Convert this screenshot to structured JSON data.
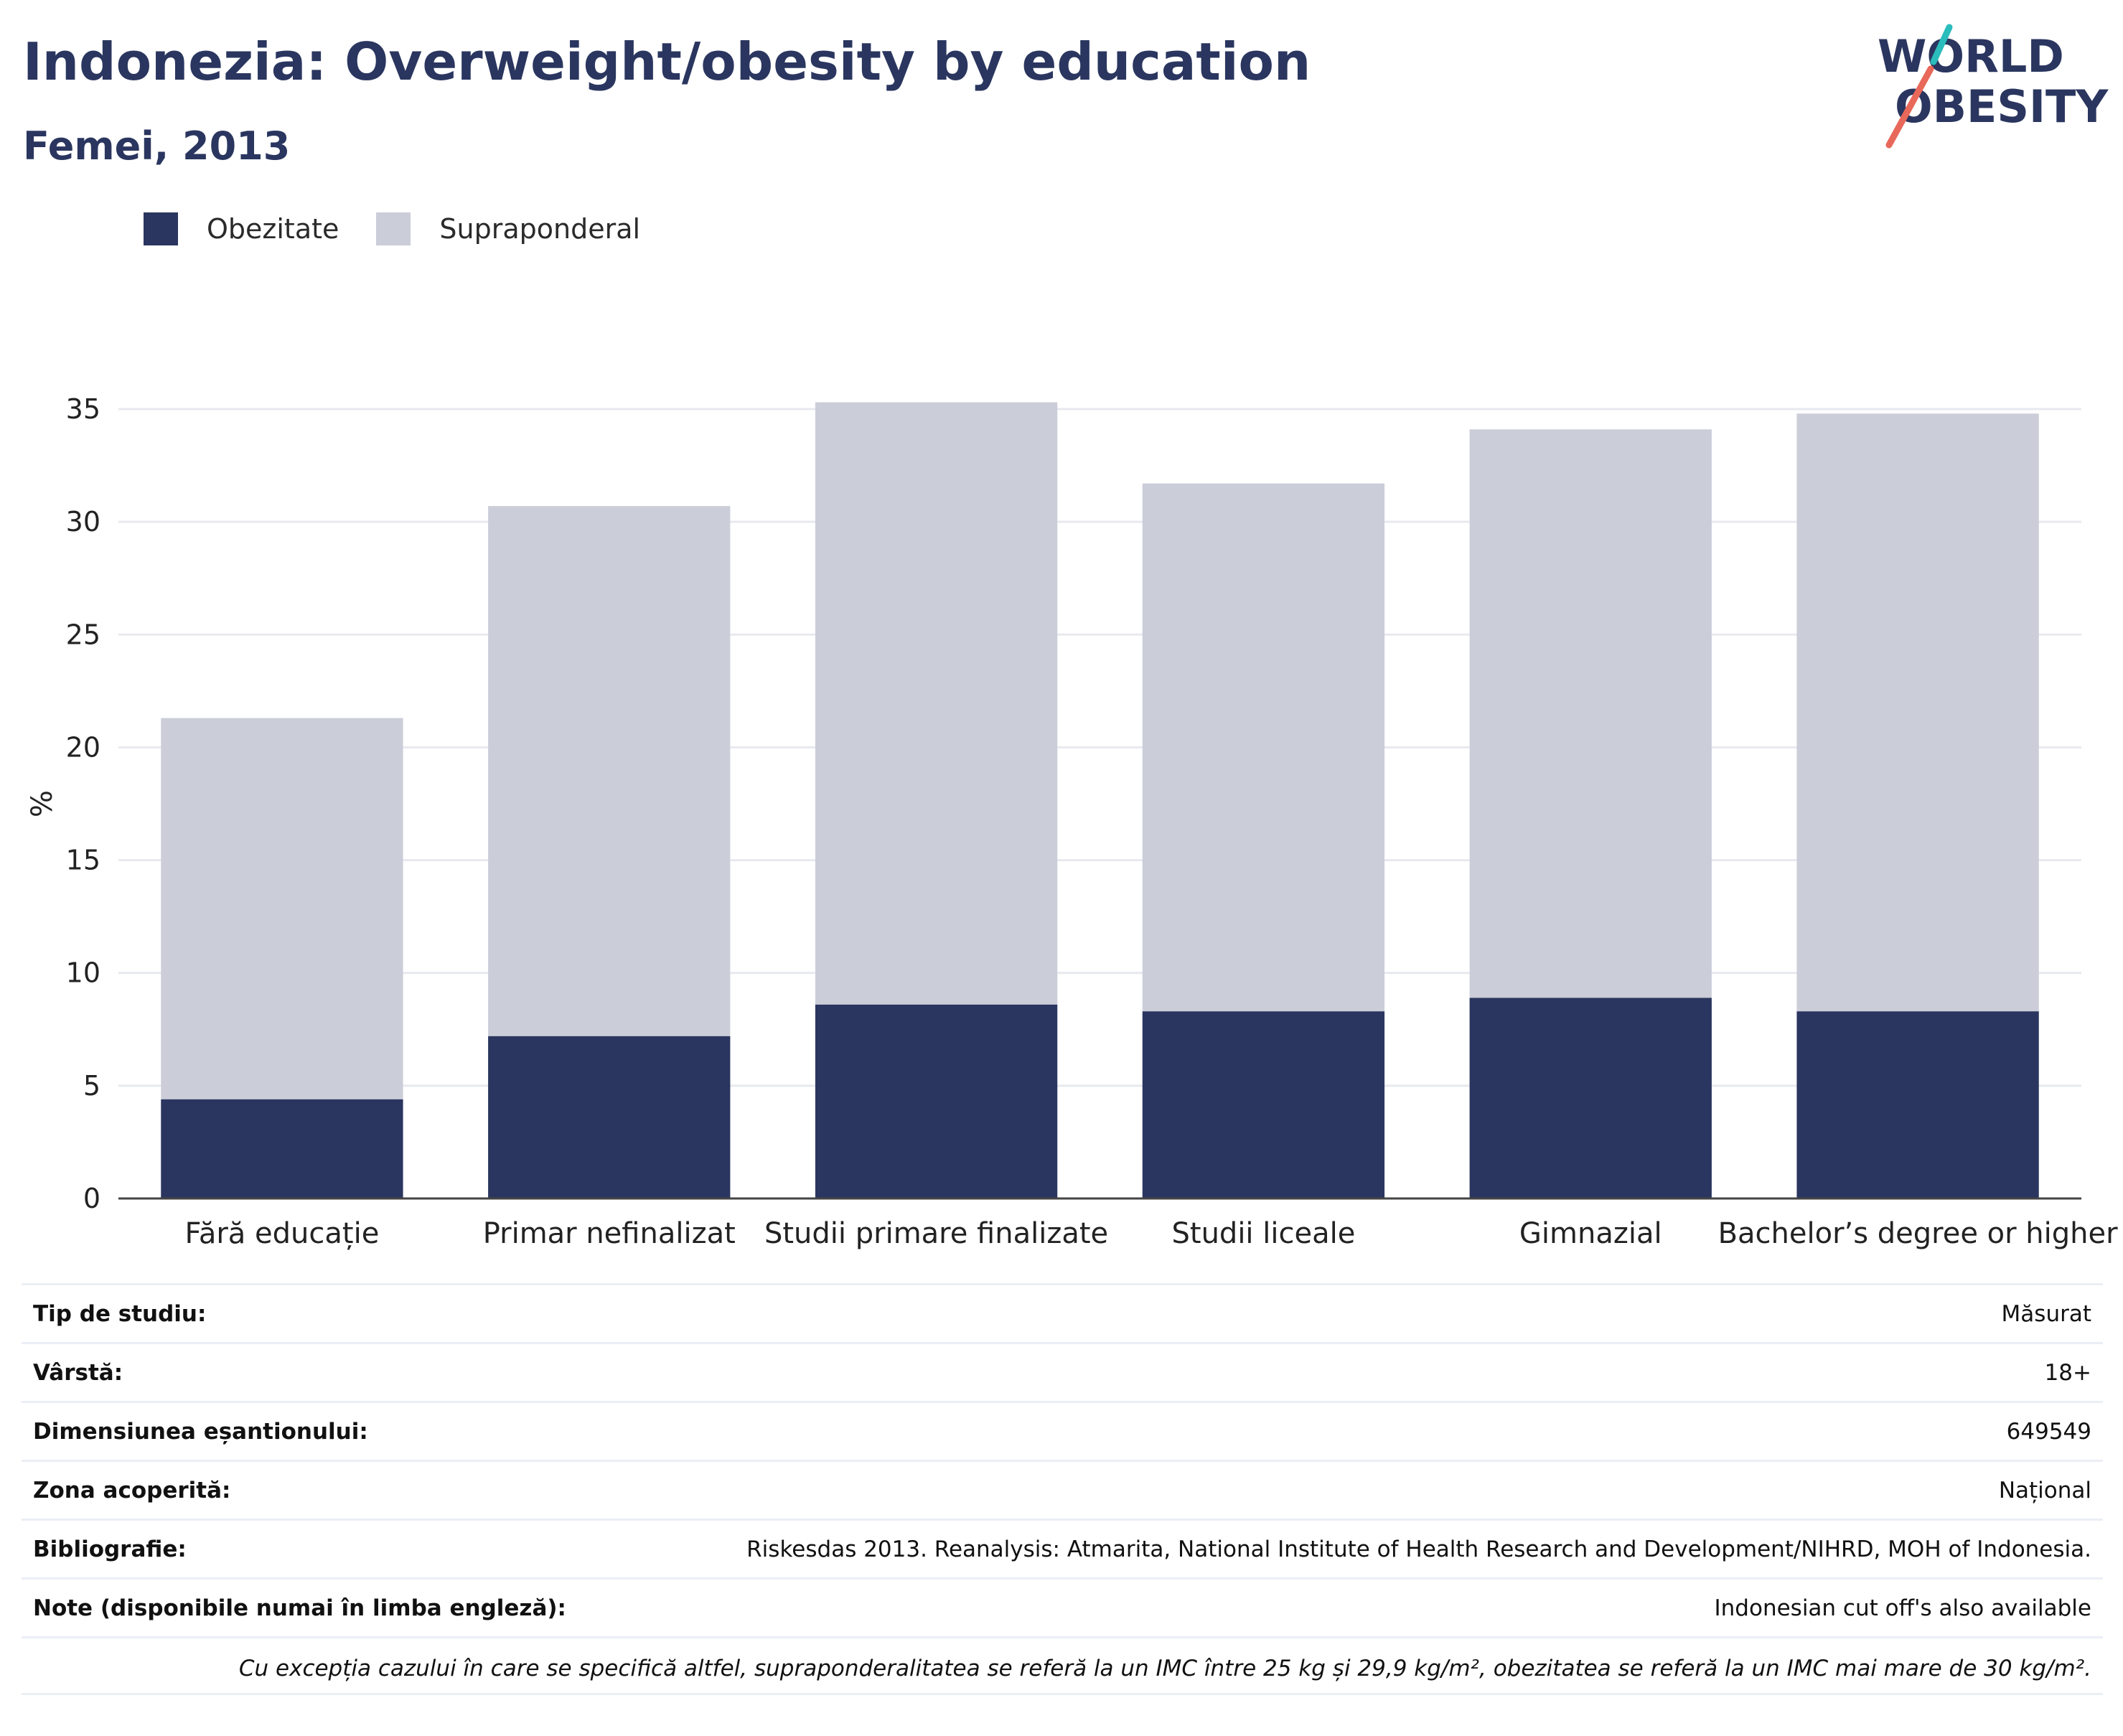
{
  "header": {
    "title": "Indonezia: Overweight/obesity by education",
    "subtitle": "Femei, 2013"
  },
  "logo": {
    "line1": "WORLD",
    "line2": "OBESITY",
    "colors": {
      "text": "#2a365f",
      "slash_teal": "#2bbcbc",
      "slash_red": "#e8685a"
    }
  },
  "legend": [
    {
      "label": "Obezitate",
      "color": "#2a365f"
    },
    {
      "label": "Supraponderal",
      "color": "#cbcdd9"
    }
  ],
  "chart_data": {
    "type": "bar",
    "stacked": true,
    "categories": [
      "Fără educație",
      "Primar nefinalizat",
      "Studii primare finalizate",
      "Studii liceale",
      "Gimnazial",
      "Bachelor’s degree or higher"
    ],
    "series": [
      {
        "name": "Obezitate",
        "color": "#2a365f",
        "values": [
          4.4,
          7.2,
          8.6,
          8.3,
          8.9,
          8.3
        ]
      },
      {
        "name": "Supraponderal",
        "color": "#cbcdd9",
        "values": [
          16.9,
          23.5,
          26.7,
          23.4,
          25.2,
          26.5
        ]
      }
    ],
    "ylabel": "%",
    "ylim": [
      0,
      35
    ],
    "yticks": [
      0,
      5,
      10,
      15,
      20,
      25,
      30,
      35
    ],
    "grid": true,
    "legend_position": "top-left"
  },
  "metadata": [
    {
      "label": "Tip de studiu:",
      "value": "Măsurat"
    },
    {
      "label": "Vârstă:",
      "value": "18+"
    },
    {
      "label": "Dimensiunea eșantionului:",
      "value": "649549"
    },
    {
      "label": "Zona acoperită:",
      "value": "Național"
    },
    {
      "label": "Bibliografie:",
      "value": "Riskesdas 2013. Reanalysis: Atmarita, National Institute of Health Research and Development/NIHRD, MOH of Indonesia."
    },
    {
      "label": "Note (disponibile numai în limba engleză):",
      "value": "Indonesian cut off's also available"
    }
  ],
  "footnote": "Cu excepția cazului în care se specifică altfel, supraponderalitatea se referă la un IMC între 25 kg și 29,9 kg/m², obezitatea se referă la un IMC mai mare de 30 kg/m²."
}
